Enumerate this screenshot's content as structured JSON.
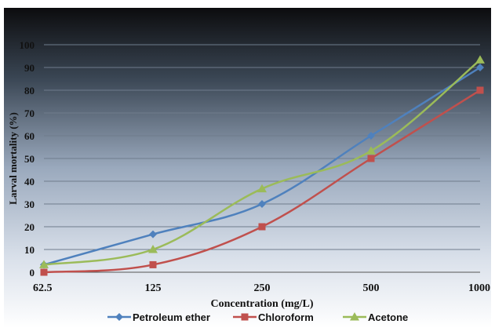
{
  "chart_data": {
    "type": "line",
    "title": "",
    "xlabel": "Concentration (mg/L)",
    "ylabel": "Larval mortality (%)",
    "categories": [
      "62.5",
      "125",
      "250",
      "500",
      "1000"
    ],
    "ylim": [
      0,
      100
    ],
    "yticks": [
      "0",
      "10",
      "20",
      "30",
      "40",
      "50",
      "60",
      "70",
      "80",
      "90",
      "100"
    ],
    "grid": "horizontal",
    "legend_position": "bottom",
    "series": [
      {
        "name": "Petroleum ether",
        "values": [
          3.3,
          16.7,
          30,
          60,
          90
        ],
        "color": "#4f81bd",
        "marker": "diamond"
      },
      {
        "name": "Chloroform",
        "values": [
          0,
          3.3,
          20,
          50,
          80
        ],
        "color": "#c0504d",
        "marker": "square"
      },
      {
        "name": "Acetone",
        "values": [
          3.3,
          10,
          36.7,
          53.3,
          93.3
        ],
        "color": "#9bbb59",
        "marker": "triangle"
      }
    ]
  }
}
